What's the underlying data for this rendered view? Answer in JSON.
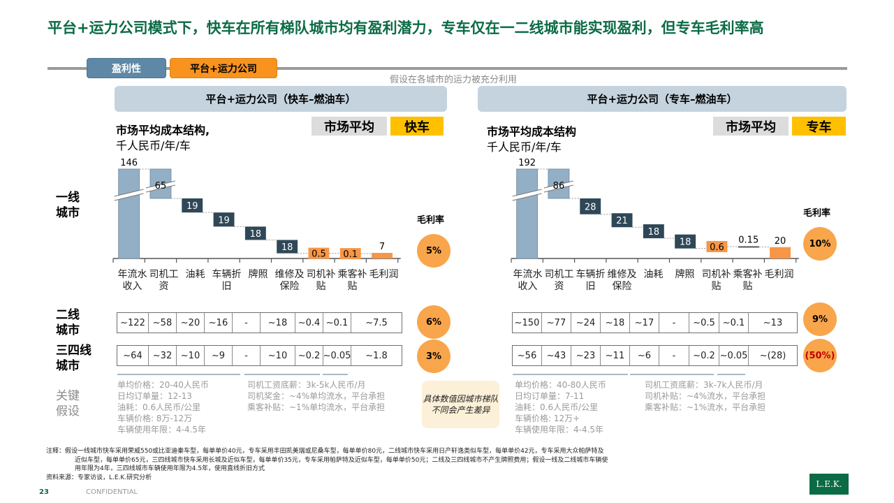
{
  "header": {
    "title": "平台+运力公司模式下，快车在所有梯队城市均有盈利潜力，专车仅在一二线城市能实现盈利，但专车毛利率高",
    "tabs": [
      {
        "label": "盈利性",
        "color": "#5f87a6"
      },
      {
        "label": "平台+运力公司",
        "color": "#f7931e"
      }
    ],
    "assumption_note": "假设在各城市的运力被充分利用"
  },
  "row_labels": {
    "tier1": "一线城市",
    "tier2": "二线城市",
    "tier34": "三四线城市",
    "key_assumptions": "关键假设"
  },
  "margin_label": "毛利率",
  "note_box": "具体数值因城市梯队不同会产生差异",
  "colors": {
    "title_green": "#0b6b45",
    "revenue_bar": "#93afc5",
    "cost_bar": "#2f4858",
    "orange_bar": "#f79646",
    "bubble": "#f9a54b",
    "legend_yellow": "#ffc000",
    "negative_red": "#c00000"
  },
  "panels": [
    {
      "header": "平台+运力公司（快车–燃油车）",
      "subtitle": "市场平均成本结构,",
      "unit": "千人民币/年/车",
      "legend": [
        "市场平均",
        "快车"
      ],
      "categories": [
        "年流水收入",
        "司机工资",
        "油耗",
        "车辆折旧",
        "牌照",
        "维修及保险",
        "司机补贴",
        "乘客补贴",
        "毛利润"
      ],
      "tier2_values": [
        "~122",
        "~58",
        "~20",
        "~16",
        "-",
        "~18",
        "~0.4",
        "~0.1",
        "~7.5"
      ],
      "tier34_values": [
        "~64",
        "~32",
        "~10",
        "~9",
        "-",
        "~10",
        "~0.2",
        "~0.05",
        "~1.8"
      ],
      "margins": {
        "tier1": "5%",
        "tier2": "6%",
        "tier34": "3%"
      },
      "assumptions_col1": [
        "单均价格：20-40人民币",
        "日均订单量：12-13",
        "油耗：0.6人民币/公里",
        "车辆价格: 8万-12万",
        "车辆使用年限：4-4.5年"
      ],
      "assumptions_col2": [
        "司机工资底薪：3k-5k人民币/月",
        "司机奖金：~4%单均流水，平台承担",
        "乘客补贴：~1%单均流水，平台承担"
      ]
    },
    {
      "header": "平台+运力公司（专车–燃油车）",
      "subtitle": "市场平均成本结构",
      "unit": "千人民币/年/车",
      "legend": [
        "市场平均",
        "专车"
      ],
      "categories": [
        "年流水收入",
        "司机工资",
        "车辆折旧",
        "维修及保险",
        "油耗",
        "牌照",
        "司机补贴",
        "乘客补贴",
        "毛利润"
      ],
      "tier2_values": [
        "~150",
        "~77",
        "~24",
        "~18",
        "~17",
        "-",
        "~0.5",
        "~0.1",
        "~13"
      ],
      "tier34_values": [
        "~56",
        "~43",
        "~23",
        "~11",
        "~6",
        "-",
        "~0.2",
        "~0.05",
        "~(28)"
      ],
      "margins": {
        "tier1": "10%",
        "tier2": "9%",
        "tier34": "(50%)"
      },
      "assumptions_col1": [
        "单均价格：40-80人民币",
        "日均订单量：7-11",
        "油耗：0.6人民币/公里",
        "车辆价格: 12万+",
        "车辆使用年限：4-4.5年"
      ],
      "assumptions_col2": [
        "司机工资底薪：3k-7k人民币/月",
        "司机补贴：~4%流水，平台承担",
        "乘客补贴：~1%流水，平台承担"
      ]
    }
  ],
  "chart_data": [
    {
      "type": "bar",
      "subtype": "waterfall",
      "title": "平台+运力公司（快车–燃油车）一线城市 市场平均成本结构",
      "ylabel": "千人民币/年/车",
      "categories": [
        "年流水收入",
        "司机工资",
        "油耗",
        "车辆折旧",
        "牌照",
        "维修及保险",
        "司机补贴",
        "乘客补贴",
        "毛利润"
      ],
      "values": [
        146,
        65,
        19,
        19,
        18,
        18,
        0.5,
        0.1,
        7
      ],
      "labels": [
        "146",
        "65",
        "19",
        "19",
        "18",
        "18",
        "0.5",
        "0.1",
        "7"
      ],
      "kinds": [
        "total",
        "cost",
        "cost",
        "cost",
        "cost",
        "cost",
        "subsidy",
        "subsidy",
        "profit"
      ],
      "axis_break": true,
      "gross_margin": "5%"
    },
    {
      "type": "bar",
      "subtype": "waterfall",
      "title": "平台+运力公司（专车–燃油车）一线城市 市场平均成本结构",
      "ylabel": "千人民币/年/车",
      "categories": [
        "年流水收入",
        "司机工资",
        "车辆折旧",
        "维修及保险",
        "油耗",
        "牌照",
        "司机补贴",
        "乘客补贴",
        "毛利润"
      ],
      "values": [
        192,
        86,
        28,
        21,
        18,
        18,
        0.6,
        0.15,
        20
      ],
      "labels": [
        "192",
        "86",
        "28",
        "21",
        "18",
        "18",
        "0.6",
        "0.15",
        "20"
      ],
      "kinds": [
        "total",
        "cost",
        "cost",
        "cost",
        "cost",
        "cost",
        "subsidy",
        "subsidy_small",
        "profit"
      ],
      "axis_break": true,
      "gross_margin": "10%"
    }
  ],
  "footer": {
    "note_lines": [
      "注释：假设一线城市快车采用荣威550或比亚迪秦车型，每单单价40元，专车采用丰田凯美瑞或尼桑车型，每单单价80元，二线城市快车采用日产轩逸类似车型，每单单价42元，专车采用大众帕萨特及",
      "近似车型，每单单价65元，三四线城市快车采用长城及近似车型，每单单价35元，专车采用帕萨特及近似车型，每单单价50元；二线及三四线城市不产生牌照费用；假设一线及二线城市车辆使",
      "用年限为4年，三四线城市车辆使用年限为4.5年，使用直线折旧方式"
    ],
    "source": "资料来源：专家访谈，L.E.K.研究分析",
    "page_number": "23",
    "confidential": "CONFIDENTIAL",
    "logo": "L.E.K."
  }
}
